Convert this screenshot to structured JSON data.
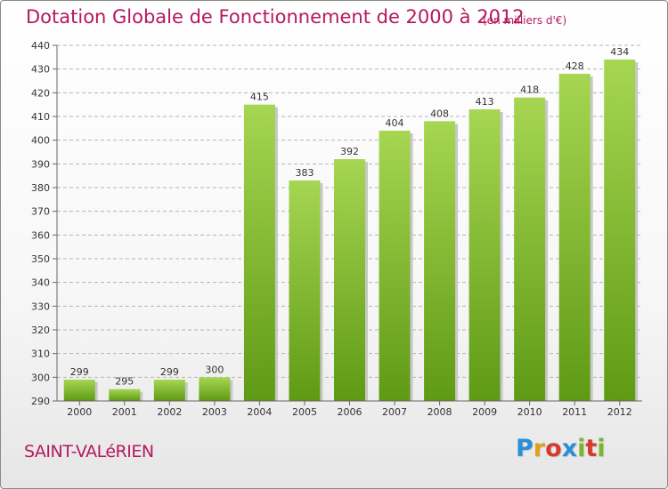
{
  "title": "Dotation Globale de Fonctionnement de 2000 à 2012",
  "unit": "(en milliers d'€)",
  "commune": "SAINT-VALéRIEN",
  "brand": {
    "letters": [
      "P",
      "r",
      "o",
      "x",
      "i",
      "t",
      "i"
    ],
    "colors": [
      "#2a8fd6",
      "#e0a018",
      "#d63a2a",
      "#2a8fd6",
      "#7ab82a",
      "#d63a2a",
      "#7ab82a"
    ]
  },
  "colors": {
    "title": "#b5195e",
    "bar_light": "#a6d652",
    "bar_dark": "#5f9a14",
    "grid": "#b4b4b4"
  },
  "chart_data": {
    "type": "bar",
    "title": "Dotation Globale de Fonctionnement de 2000 à 2012",
    "unit": "(en milliers d'€)",
    "categories": [
      "2000",
      "2001",
      "2002",
      "2003",
      "2004",
      "2005",
      "2006",
      "2007",
      "2008",
      "2009",
      "2010",
      "2011",
      "2012"
    ],
    "values": [
      299,
      295,
      299,
      300,
      415,
      383,
      392,
      404,
      408,
      413,
      418,
      428,
      434
    ],
    "ylim": [
      290,
      440
    ],
    "yticks": [
      290,
      300,
      310,
      320,
      330,
      340,
      350,
      360,
      370,
      380,
      390,
      400,
      410,
      420,
      430,
      440
    ],
    "grid": true,
    "legend": "none"
  }
}
